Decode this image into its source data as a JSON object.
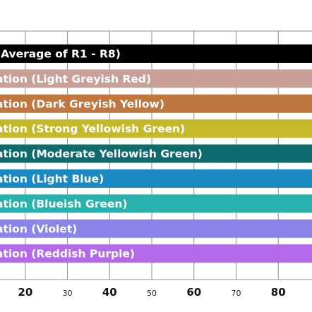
{
  "chart_data": {
    "type": "bar",
    "orientation": "horizontal",
    "title": "",
    "xlabel": "",
    "ylabel": "",
    "grid": true,
    "legend": "none",
    "categories": [
      "(Average of R1 - R8)",
      "ation (Light Greyish Red)",
      "ation (Dark Greyish Yellow)",
      "ation (Strong Yellowish Green)",
      "ation (Moderate Yellowish Green)",
      "ation (Light Blue)",
      "ation (Blueish Green)",
      "ation (Violet)",
      "ation (Reddish Purple)"
    ],
    "values": [
      100,
      100,
      100,
      100,
      100,
      100,
      100,
      100,
      100
    ],
    "colors": [
      "#000000",
      "#c9a097",
      "#c0773f",
      "#c3b92b",
      "#0e6b6d",
      "#1a88c1",
      "#29b2ad",
      "#8b84ea",
      "#b36ae8"
    ],
    "xlim": [
      14,
      88
    ],
    "ticks": [
      {
        "value": 20,
        "label": "20",
        "major": true
      },
      {
        "value": 30,
        "label": "30",
        "major": false
      },
      {
        "value": 40,
        "label": "40",
        "major": true
      },
      {
        "value": 50,
        "label": "50",
        "major": false
      },
      {
        "value": 60,
        "label": "60",
        "major": true
      },
      {
        "value": 70,
        "label": "70",
        "major": false
      },
      {
        "value": 80,
        "label": "80",
        "major": true
      }
    ]
  }
}
